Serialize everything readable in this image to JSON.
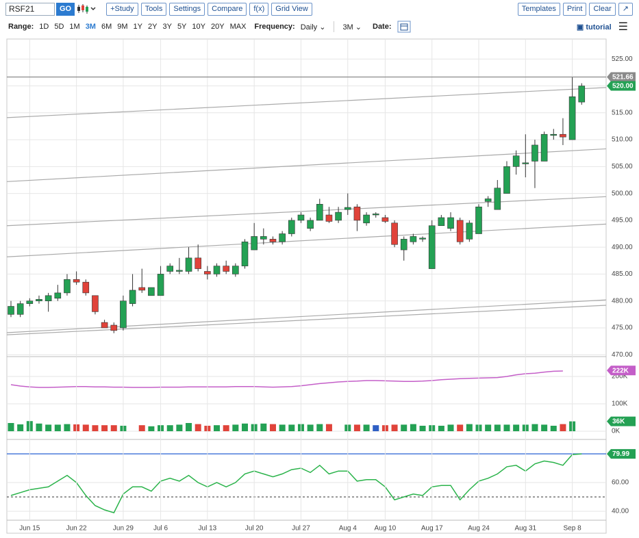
{
  "toolbar": {
    "symbol": "RSF21",
    "go": "GO",
    "buttons": [
      "+Study",
      "Tools",
      "Settings",
      "Compare",
      "f(x)",
      "Grid View"
    ],
    "right_buttons": [
      "Templates",
      "Print",
      "Clear"
    ]
  },
  "range_bar": {
    "range_label": "Range:",
    "ranges": [
      "1D",
      "5D",
      "1M",
      "3M",
      "6M",
      "9M",
      "1Y",
      "2Y",
      "3Y",
      "5Y",
      "10Y",
      "20Y",
      "MAX"
    ],
    "active_range_index": 3,
    "frequency_label": "Frequency:",
    "frequency": "Daily",
    "period": "3M",
    "date_label": "Date:",
    "tutorial": "tutorial"
  },
  "chart_data": [
    {
      "type": "candlestick",
      "categories": [
        null,
        null,
        "Jun 15",
        null,
        null,
        null,
        null,
        "Jun 22",
        null,
        null,
        null,
        null,
        "Jun 29",
        null,
        null,
        null,
        "Jul 6",
        null,
        null,
        null,
        null,
        "Jul 13",
        null,
        null,
        null,
        null,
        "Jul 20",
        null,
        null,
        null,
        null,
        "Jul 27",
        null,
        null,
        null,
        null,
        "Aug 4",
        null,
        null,
        null,
        "Aug 10",
        null,
        null,
        null,
        null,
        "Aug 17",
        null,
        null,
        null,
        null,
        "Aug 24",
        null,
        null,
        null,
        null,
        "Aug 31",
        null,
        null,
        null,
        null,
        "Sep 8",
        null
      ],
      "open": [
        477.5,
        477.5,
        479.5,
        480,
        480,
        480.5,
        481.5,
        484,
        483.5,
        481,
        476,
        475.5,
        475,
        479.5,
        482.5,
        481,
        481,
        485.5,
        485.5,
        485.5,
        488,
        485.5,
        485,
        486.5,
        485,
        486.5,
        489.5,
        491.5,
        491.5,
        491,
        492.5,
        495,
        493.5,
        495,
        496,
        495,
        497,
        497.5,
        494.5,
        496,
        495.5,
        494.5,
        489.5,
        491,
        491.5,
        486,
        494,
        493.5,
        495,
        491.5,
        492.5,
        498.5,
        497,
        500,
        505,
        505.5,
        506,
        506,
        510.8,
        511,
        510,
        517
      ],
      "high": [
        480,
        480,
        480.5,
        481,
        481.5,
        483,
        485,
        485.5,
        484,
        481,
        476.5,
        476,
        481,
        485,
        486,
        482.5,
        486.5,
        487,
        488,
        490,
        490.5,
        486.5,
        487,
        487.5,
        487,
        491.5,
        494.5,
        493.5,
        492,
        493,
        495.5,
        496.5,
        495.5,
        499,
        497.5,
        497.5,
        500,
        498,
        496.5,
        496.5,
        496,
        495,
        492,
        492.5,
        492,
        495,
        496,
        496.5,
        495.5,
        495,
        498,
        499.5,
        502.5,
        506,
        508,
        511,
        510,
        511.5,
        512,
        514,
        521.66,
        520.5
      ],
      "low": [
        477,
        477,
        479,
        479.5,
        478,
        480,
        481,
        483,
        481,
        477.5,
        475,
        474,
        474.5,
        479,
        481.5,
        481,
        481,
        485,
        485,
        485,
        485.5,
        484,
        484.5,
        485,
        484.5,
        486,
        489.5,
        490.5,
        490.5,
        490.5,
        492,
        494.5,
        493,
        495,
        494.5,
        494.5,
        496,
        493,
        494,
        495.5,
        494.5,
        490,
        487.5,
        490.5,
        491,
        486,
        494,
        493,
        490.5,
        491,
        492.5,
        497.5,
        497,
        500,
        503.5,
        503,
        501,
        506,
        510,
        509,
        510,
        516.5
      ],
      "close": [
        479,
        479.5,
        480,
        480.3,
        481,
        481.5,
        484,
        483.5,
        481.5,
        478,
        475,
        474.5,
        480,
        482,
        482,
        482.5,
        485,
        486.5,
        485.7,
        488,
        486,
        485,
        486.5,
        485.5,
        486.5,
        491,
        492,
        492,
        491,
        492.5,
        495,
        496,
        495,
        498,
        494.8,
        496.5,
        497.4,
        495,
        496,
        496.2,
        494.8,
        490.5,
        491.5,
        492,
        491.7,
        494,
        495.5,
        495.5,
        491,
        494.5,
        497.5,
        499,
        501,
        505,
        507,
        505.7,
        509,
        511,
        511,
        510.5,
        518,
        520
      ],
      "up_color": "#24a154",
      "down_color": "#e0433a",
      "ylim": [
        469.9,
        528.6
      ],
      "yticks": [
        {
          "value": 470,
          "label": "470.00"
        },
        {
          "value": 475,
          "label": "475.00"
        },
        {
          "value": 480,
          "label": "480.00"
        },
        {
          "value": 485,
          "label": "485.00"
        },
        {
          "value": 490,
          "label": "490.00"
        },
        {
          "value": 495,
          "label": "495.00"
        },
        {
          "value": 500,
          "label": "500.00"
        },
        {
          "value": 505,
          "label": "505.00"
        },
        {
          "value": 510,
          "label": "510.00"
        },
        {
          "value": 515,
          "label": "515.00"
        },
        {
          "value": 520,
          "label": "520.00"
        },
        {
          "value": 525,
          "label": "525.00"
        }
      ],
      "grid": true,
      "trend_lines": [
        {
          "start": 514.1,
          "end": 519.7
        },
        {
          "start": 502.2,
          "end": 508.3
        },
        {
          "start": 494.0,
          "end": 499.4
        },
        {
          "start": 488.2,
          "end": 494.3
        },
        {
          "start": 474.1,
          "end": 480.2
        },
        {
          "start": 473.7,
          "end": 479.2
        }
      ],
      "trend_color": "#a9a9a9",
      "annotations": [
        {
          "value": 521.66,
          "label": "521.66",
          "color": "#8a8a8a",
          "line": true
        },
        {
          "value": 520,
          "label": "520.00",
          "color": "#24a154",
          "line": false
        }
      ]
    },
    {
      "type": "volume",
      "values": [
        30000,
        25000,
        37000,
        28000,
        24000,
        24000,
        26000,
        25000,
        24000,
        22000,
        22000,
        22000,
        20000,
        null,
        22000,
        18000,
        22000,
        22000,
        24000,
        30000,
        26000,
        20000,
        22000,
        22000,
        24000,
        28000,
        26000,
        28000,
        26000,
        24000,
        24000,
        26000,
        24000,
        26000,
        26000,
        null,
        24000,
        24000,
        24000,
        22000,
        22000,
        24000,
        24000,
        26000,
        20000,
        22000,
        20000,
        24000,
        24000,
        26000,
        24000,
        24000,
        24000,
        24000,
        24000,
        24000,
        26000,
        24000,
        20000,
        26000,
        36000,
        null
      ],
      "colors": [
        "#24a154",
        "#24a154",
        "#24a154",
        "#24a154",
        "#24a154",
        "#24a154",
        "#24a154",
        "#e0433a",
        "#e0433a",
        "#e0433a",
        "#e0433a",
        "#e0433a",
        "#24a154",
        "#24a154",
        "#e0433a",
        "#24a154",
        "#24a154",
        "#24a154",
        "#24a154",
        "#24a154",
        "#e0433a",
        "#e0433a",
        "#24a154",
        "#e0433a",
        "#24a154",
        "#24a154",
        "#24a154",
        "#24a154",
        "#e0433a",
        "#24a154",
        "#24a154",
        "#24a154",
        "#24a154",
        "#24a154",
        "#e0433a",
        "#24a154",
        "#24a154",
        "#e0433a",
        "#24a154",
        "#2f5fc4",
        "#e0433a",
        "#e0433a",
        "#24a154",
        "#24a154",
        "#24a154",
        "#24a154",
        "#24a154",
        "#24a154",
        "#e0433a",
        "#24a154",
        "#24a154",
        "#24a154",
        "#24a154",
        "#24a154",
        "#24a154",
        "#24a154",
        "#24a154",
        "#24a154",
        "#24a154",
        "#e0433a",
        "#24a154",
        "#24a154"
      ],
      "average": [
        170000,
        165000,
        162000,
        160000,
        160000,
        161000,
        162000,
        163000,
        163000,
        162000,
        162000,
        161000,
        161000,
        160000,
        160000,
        160000,
        161000,
        161000,
        161000,
        162000,
        162000,
        162000,
        162000,
        162000,
        163000,
        163000,
        163000,
        162000,
        161000,
        162000,
        163000,
        166000,
        170000,
        174000,
        177000,
        180000,
        182000,
        183000,
        185000,
        185000,
        184000,
        183000,
        182000,
        182000,
        183000,
        185000,
        188000,
        190000,
        192000,
        193000,
        194000,
        195000,
        196000,
        200000,
        206000,
        210000,
        212000,
        216000,
        219000,
        220000,
        null,
        null
      ],
      "average_color": "#c45ec8",
      "ylim": [
        -25000,
        265000
      ],
      "yticks": [
        {
          "value": 0,
          "label": "0K"
        },
        {
          "value": 100000,
          "label": "100K"
        },
        {
          "value": 200000,
          "label": "200K"
        }
      ],
      "annotations": [
        {
          "value": 222000,
          "label": "222K",
          "color": "#c45ec8"
        },
        {
          "value": 36000,
          "label": "36K",
          "color": "#24a154"
        }
      ]
    },
    {
      "type": "line",
      "values": [
        51,
        53,
        55,
        56,
        57,
        61,
        65,
        60,
        51,
        44,
        41,
        39,
        52,
        57,
        57,
        54,
        61,
        63,
        61,
        65,
        60,
        57,
        60,
        57,
        60,
        66,
        68,
        66,
        64,
        66,
        69,
        70,
        67,
        72,
        66,
        68,
        68,
        61,
        62,
        62,
        57,
        48,
        50,
        52,
        51,
        57,
        58,
        58,
        48,
        55,
        61,
        63,
        66,
        71,
        72,
        68,
        73,
        75,
        74,
        72,
        79.5,
        79.99
      ],
      "color": "#2ab34a",
      "ylim": [
        33.8,
        88.6
      ],
      "yticks": [
        {
          "value": 40,
          "label": "40.00"
        },
        {
          "value": 60,
          "label": "60.00"
        }
      ],
      "levels": [
        {
          "value": 80,
          "color": "#3a6fd8",
          "dashed": false
        },
        {
          "value": 50,
          "color": "#333333",
          "dashed": true
        }
      ],
      "annotations": [
        {
          "value": 79.99,
          "label": "79.99",
          "color": "#24a154"
        }
      ]
    }
  ]
}
